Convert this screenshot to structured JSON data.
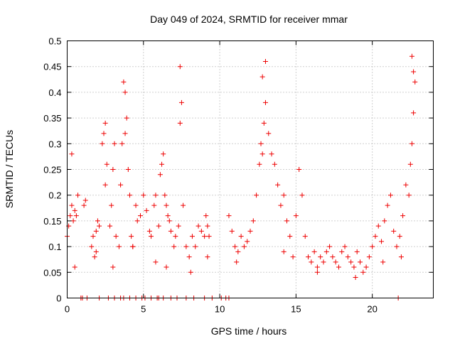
{
  "chart_data": {
    "type": "scatter",
    "title": "Day 049 of 2024, SRMTID for receiver mmar",
    "xlabel": "GPS time / hours",
    "ylabel": "SRMTID / TECUs",
    "xlim": [
      0,
      24
    ],
    "ylim": [
      0,
      0.5
    ],
    "x_ticks": [
      0,
      5,
      10,
      15,
      20
    ],
    "x_tick_labels": [
      "0",
      "5",
      "10",
      "15",
      "20"
    ],
    "y_ticks": [
      0,
      0.05,
      0.1,
      0.15,
      0.2,
      0.25,
      0.3,
      0.35,
      0.4,
      0.45,
      0.5
    ],
    "y_tick_labels": [
      "0",
      "0.05",
      "0.1",
      "0.15",
      "0.2",
      "0.25",
      "0.3",
      "0.35",
      "0.4",
      "0.45",
      "0.5"
    ],
    "grid": true,
    "marker": "plus",
    "color": "#ee0000",
    "series": [
      {
        "name": "SRMTID",
        "x": [
          0.0,
          0.1,
          0.2,
          0.3,
          0.4,
          0.5,
          0.6,
          0.7,
          1.1,
          1.2,
          1.6,
          1.7,
          1.8,
          1.9,
          2.0,
          2.1,
          2.3,
          2.4,
          2.5,
          2.6,
          2.8,
          2.9,
          3.0,
          3.1,
          3.2,
          3.4,
          3.5,
          3.6,
          3.7,
          3.8,
          3.9,
          4.0,
          4.1,
          4.2,
          4.3,
          4.5,
          4.6,
          4.8,
          5.0,
          5.2,
          5.4,
          5.5,
          5.7,
          5.8,
          6.0,
          6.1,
          6.2,
          6.3,
          6.4,
          6.5,
          6.6,
          6.7,
          6.8,
          7.0,
          7.1,
          7.3,
          7.4,
          7.5,
          7.6,
          7.8,
          8.0,
          8.2,
          8.4,
          8.6,
          8.8,
          9.0,
          9.1,
          9.2,
          9.3,
          10.6,
          10.8,
          11.0,
          11.2,
          11.4,
          11.6,
          11.8,
          12.0,
          12.2,
          12.4,
          12.6,
          12.7,
          12.8,
          12.9,
          13.0,
          13.2,
          13.4,
          13.6,
          13.8,
          14.0,
          14.2,
          14.4,
          14.6,
          14.8,
          15.0,
          15.2,
          15.4,
          15.6,
          15.8,
          16.0,
          16.2,
          16.4,
          16.6,
          16.8,
          17.0,
          17.2,
          17.4,
          17.6,
          17.8,
          18.0,
          18.2,
          18.4,
          18.6,
          18.8,
          19.0,
          19.2,
          19.4,
          19.6,
          19.8,
          20.0,
          20.2,
          20.4,
          20.6,
          20.8,
          21.0,
          21.2,
          21.4,
          21.6,
          21.8,
          22.0,
          22.2,
          22.4,
          22.5,
          22.6,
          22.7,
          22.8,
          0.3,
          2.5,
          3.8,
          7.4,
          12.8,
          13.0,
          22.7,
          22.6,
          0.5,
          1.9,
          3.0,
          4.3,
          5.8,
          6.5,
          8.1,
          9.2,
          11.1,
          14.2,
          16.4,
          18.9,
          20.7,
          21.9,
          0.9,
          1.0,
          1.3,
          2.1,
          2.7,
          3.1,
          3.5,
          3.7,
          4.1,
          4.5,
          4.9,
          5.1,
          5.5,
          5.9,
          6.0,
          6.3,
          6.8,
          7.2,
          7.8,
          8.3,
          9.0,
          9.5,
          10.1,
          10.4,
          10.6,
          21.7
        ],
        "y": [
          0.12,
          0.14,
          0.16,
          0.18,
          0.15,
          0.17,
          0.16,
          0.2,
          0.18,
          0.19,
          0.1,
          0.12,
          0.08,
          0.13,
          0.15,
          0.14,
          0.3,
          0.32,
          0.34,
          0.26,
          0.14,
          0.18,
          0.25,
          0.3,
          0.12,
          0.1,
          0.22,
          0.3,
          0.42,
          0.4,
          0.35,
          0.25,
          0.2,
          0.12,
          0.1,
          0.18,
          0.15,
          0.16,
          0.2,
          0.17,
          0.13,
          0.12,
          0.18,
          0.2,
          0.14,
          0.24,
          0.26,
          0.28,
          0.2,
          0.18,
          0.16,
          0.15,
          0.13,
          0.1,
          0.12,
          0.14,
          0.34,
          0.38,
          0.18,
          0.1,
          0.08,
          0.12,
          0.1,
          0.14,
          0.13,
          0.12,
          0.16,
          0.14,
          0.12,
          0.16,
          0.13,
          0.1,
          0.09,
          0.12,
          0.1,
          0.11,
          0.13,
          0.15,
          0.2,
          0.26,
          0.3,
          0.28,
          0.34,
          0.38,
          0.32,
          0.28,
          0.26,
          0.22,
          0.18,
          0.2,
          0.15,
          0.12,
          0.08,
          0.16,
          0.25,
          0.2,
          0.12,
          0.08,
          0.07,
          0.09,
          0.06,
          0.08,
          0.07,
          0.09,
          0.1,
          0.08,
          0.07,
          0.06,
          0.09,
          0.1,
          0.08,
          0.07,
          0.06,
          0.09,
          0.07,
          0.05,
          0.06,
          0.08,
          0.1,
          0.12,
          0.14,
          0.11,
          0.15,
          0.18,
          0.2,
          0.13,
          0.1,
          0.12,
          0.16,
          0.22,
          0.2,
          0.26,
          0.3,
          0.36,
          0.42,
          0.28,
          0.22,
          0.32,
          0.45,
          0.43,
          0.46,
          0.44,
          0.47,
          0.06,
          0.09,
          0.06,
          0.1,
          0.07,
          0.06,
          0.05,
          0.08,
          0.07,
          0.09,
          0.05,
          0.04,
          0.07,
          0.08,
          0.0,
          0.0,
          0.0,
          0.0,
          0.0,
          0.0,
          0.0,
          0.0,
          0.0,
          0.0,
          0.0,
          0.0,
          0.0,
          0.0,
          0.0,
          0.0,
          0.0,
          0.0,
          0.0,
          0.0,
          0.0,
          0.0,
          0.0,
          0.0,
          0.0,
          0.0
        ]
      }
    ]
  }
}
